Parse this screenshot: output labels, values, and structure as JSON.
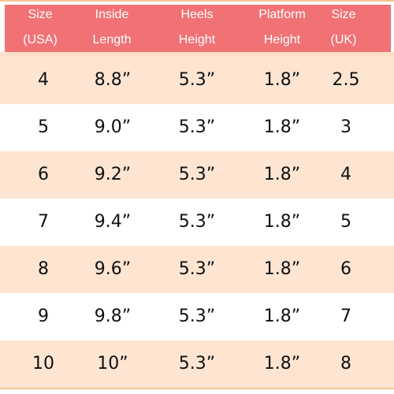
{
  "table": {
    "headers": [
      {
        "line1": "Size",
        "line2": "(USA)"
      },
      {
        "line1": "Inside",
        "line2": "Length"
      },
      {
        "line1": "Heels",
        "line2": "Height"
      },
      {
        "line1": "Platform",
        "line2": "Height"
      },
      {
        "line1": "Size",
        "line2": "(UK)"
      }
    ],
    "rows": [
      [
        "4",
        "8.8”",
        "5.3”",
        "1.8”",
        "2.5"
      ],
      [
        "5",
        "9.0”",
        "5.3”",
        "1.8”",
        "3"
      ],
      [
        "6",
        "9.2”",
        "5.3”",
        "1.8”",
        "4"
      ],
      [
        "7",
        "9.4”",
        "5.3”",
        "1.8”",
        "5"
      ],
      [
        "8",
        "9.6”",
        "5.3”",
        "1.8”",
        "6"
      ],
      [
        "9",
        "9.8”",
        "5.3”",
        "1.8”",
        "7"
      ],
      [
        "10",
        "10”",
        "5.3”",
        "1.8”",
        "8"
      ]
    ]
  },
  "colors": {
    "header_bg": "#f07275",
    "alt_row_bg": "#fde5d2",
    "border": "#f5c48e"
  }
}
